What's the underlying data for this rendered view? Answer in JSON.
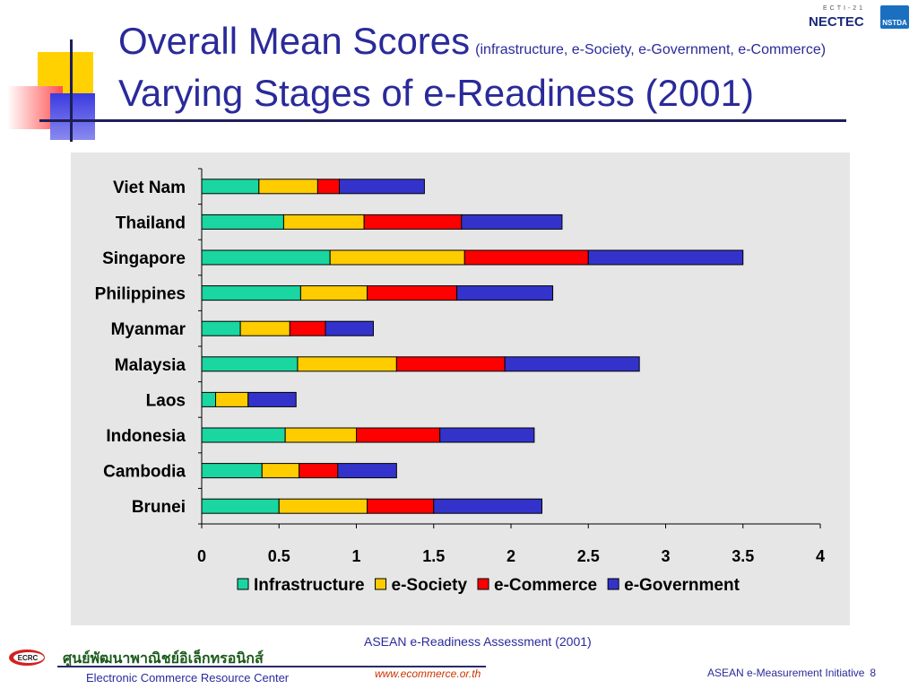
{
  "slide": {
    "title_main": "Overall Mean Scores",
    "title_sub": "(infrastructure, e-Society, e-Government, e-Commerce)",
    "title_line2": "Varying Stages of e-Readiness (2001)",
    "logo_text": "NECTEC",
    "logo_small": "ECTI-21",
    "logo_right": "NSTDA",
    "source": "ASEAN e-Readiness Assessment (2001)",
    "footer_logo": "ECRC",
    "footer_thai": "ศูนย์พัฒนาพาณิชย์อิเล็กทรอนิกส์",
    "footer_org": "Electronic Commerce Resource Center",
    "footer_url": "www.ecommerce.or.th",
    "footer_right": "ASEAN e-Measurement Initiative",
    "page_number": "8"
  },
  "chart_data": {
    "type": "bar",
    "orientation": "horizontal",
    "stacked": true,
    "categories": [
      "Brunei",
      "Cambodia",
      "Indonesia",
      "Laos",
      "Malaysia",
      "Myanmar",
      "Philippines",
      "Singapore",
      "Thailand",
      "Viet Nam"
    ],
    "series": [
      {
        "name": "Infrastructure",
        "color": "#1ad6a0",
        "values": [
          0.5,
          0.39,
          0.54,
          0.09,
          0.62,
          0.25,
          0.64,
          0.83,
          0.53,
          0.37
        ]
      },
      {
        "name": "e-Society",
        "color": "#ffcc00",
        "values": [
          0.57,
          0.24,
          0.46,
          0.21,
          0.64,
          0.32,
          0.43,
          0.87,
          0.52,
          0.38
        ]
      },
      {
        "name": "e-Commerce",
        "color": "#ff0000",
        "values": [
          0.43,
          0.25,
          0.54,
          0.0,
          0.7,
          0.23,
          0.58,
          0.8,
          0.63,
          0.14
        ]
      },
      {
        "name": "e-Government",
        "color": "#3333cc",
        "values": [
          0.7,
          0.38,
          0.61,
          0.31,
          0.87,
          0.31,
          0.62,
          1.0,
          0.65,
          0.55
        ]
      }
    ],
    "xlim": [
      0,
      4
    ],
    "xticks": [
      "0",
      "0.5",
      "1",
      "1.5",
      "2",
      "2.5",
      "3",
      "3.5",
      "4"
    ],
    "xlabel": "",
    "ylabel": "",
    "grid": false,
    "legend": "bottom"
  }
}
